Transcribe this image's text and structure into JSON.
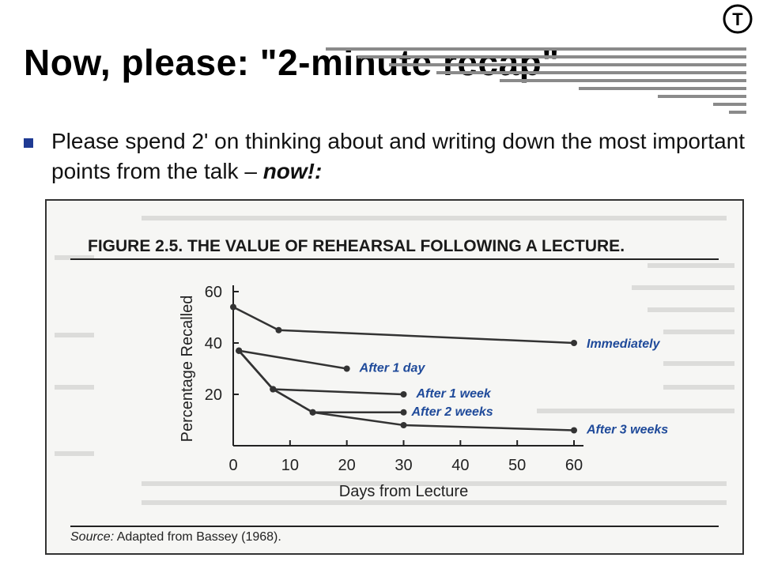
{
  "slide": {
    "title": "Now, please: \"2-minute recap\"",
    "logo_letter": "T",
    "bullet": {
      "text_before": "Please spend 2' on thinking about and writing down the most important points from the talk – ",
      "emphasis": "now!:"
    }
  },
  "figure": {
    "heading": "FIGURE 2.5.  THE VALUE OF REHEARSAL FOLLOWING A LECTURE.",
    "source_label": "Source:",
    "source_text": " Adapted from Bassey (1968)."
  },
  "chart_data": {
    "type": "line",
    "title": "",
    "xlabel": "Days from Lecture",
    "ylabel": "Percentage Recalled",
    "xlim": [
      0,
      60
    ],
    "ylim": [
      0,
      60
    ],
    "xticks": [
      0,
      10,
      20,
      30,
      40,
      50,
      60
    ],
    "yticks": [
      20,
      40,
      60
    ],
    "series": [
      {
        "name": "Immediately",
        "x": [
          0,
          8,
          60
        ],
        "y": [
          54,
          45,
          40
        ]
      },
      {
        "name": "After 1 day",
        "x": [
          1,
          20
        ],
        "y": [
          37,
          30
        ]
      },
      {
        "name": "After 1 week",
        "x": [
          1,
          7,
          30
        ],
        "y": [
          37,
          22,
          20
        ]
      },
      {
        "name": "After 2 weeks",
        "x": [
          1,
          7,
          14,
          30
        ],
        "y": [
          37,
          22,
          13,
          13
        ]
      },
      {
        "name": "After 3 weeks",
        "x": [
          1,
          7,
          14,
          30,
          60
        ],
        "y": [
          37,
          22,
          13,
          8,
          6
        ]
      }
    ]
  }
}
